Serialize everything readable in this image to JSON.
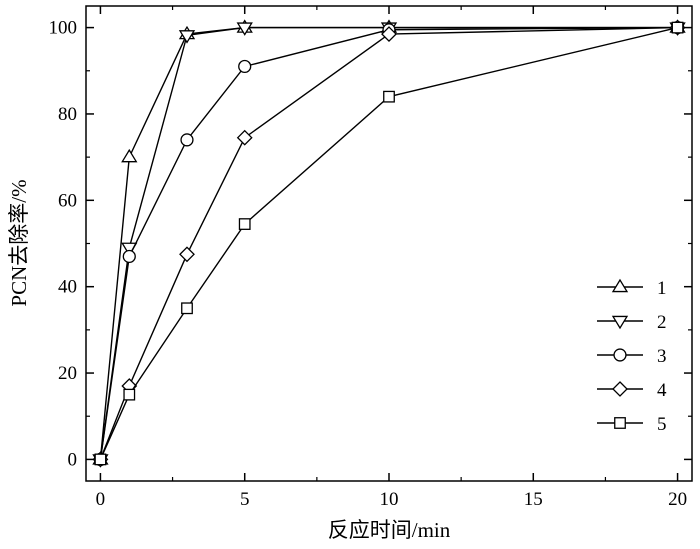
{
  "chart_data": {
    "type": "line",
    "title": "",
    "xlabel": "反应时间/min",
    "ylabel": "PCN去除率/%",
    "xlim": [
      -0.5,
      20.5
    ],
    "ylim": [
      -5,
      105
    ],
    "xticks": [
      0,
      5,
      10,
      15,
      20
    ],
    "yticks": [
      0,
      20,
      40,
      60,
      80,
      100
    ],
    "x_tick_labels": [
      "0",
      "5",
      "10",
      "15",
      "20"
    ],
    "y_tick_labels": [
      "0",
      "20",
      "40",
      "60",
      "80",
      "100"
    ],
    "grid": false,
    "legend_position": "lower-right",
    "series": [
      {
        "name": "1",
        "marker": "triangle-up",
        "x": [
          0,
          1,
          3,
          5,
          10,
          20
        ],
        "y": [
          0,
          70,
          98.5,
          100,
          100,
          100
        ]
      },
      {
        "name": "2",
        "marker": "triangle-down",
        "x": [
          0,
          1,
          3,
          5,
          10,
          20
        ],
        "y": [
          0,
          49,
          98.2,
          100,
          100,
          100
        ]
      },
      {
        "name": "3",
        "marker": "circle",
        "x": [
          0,
          1,
          3,
          5,
          10,
          20
        ],
        "y": [
          0,
          47,
          74,
          91,
          99.5,
          100
        ]
      },
      {
        "name": "4",
        "marker": "diamond",
        "x": [
          0,
          1,
          3,
          5,
          10,
          20
        ],
        "y": [
          0,
          17,
          47.5,
          74.5,
          98.5,
          100
        ]
      },
      {
        "name": "5",
        "marker": "square",
        "x": [
          0,
          1,
          3,
          5,
          10,
          20
        ],
        "y": [
          0,
          15,
          35,
          54.5,
          84,
          100
        ]
      }
    ]
  }
}
